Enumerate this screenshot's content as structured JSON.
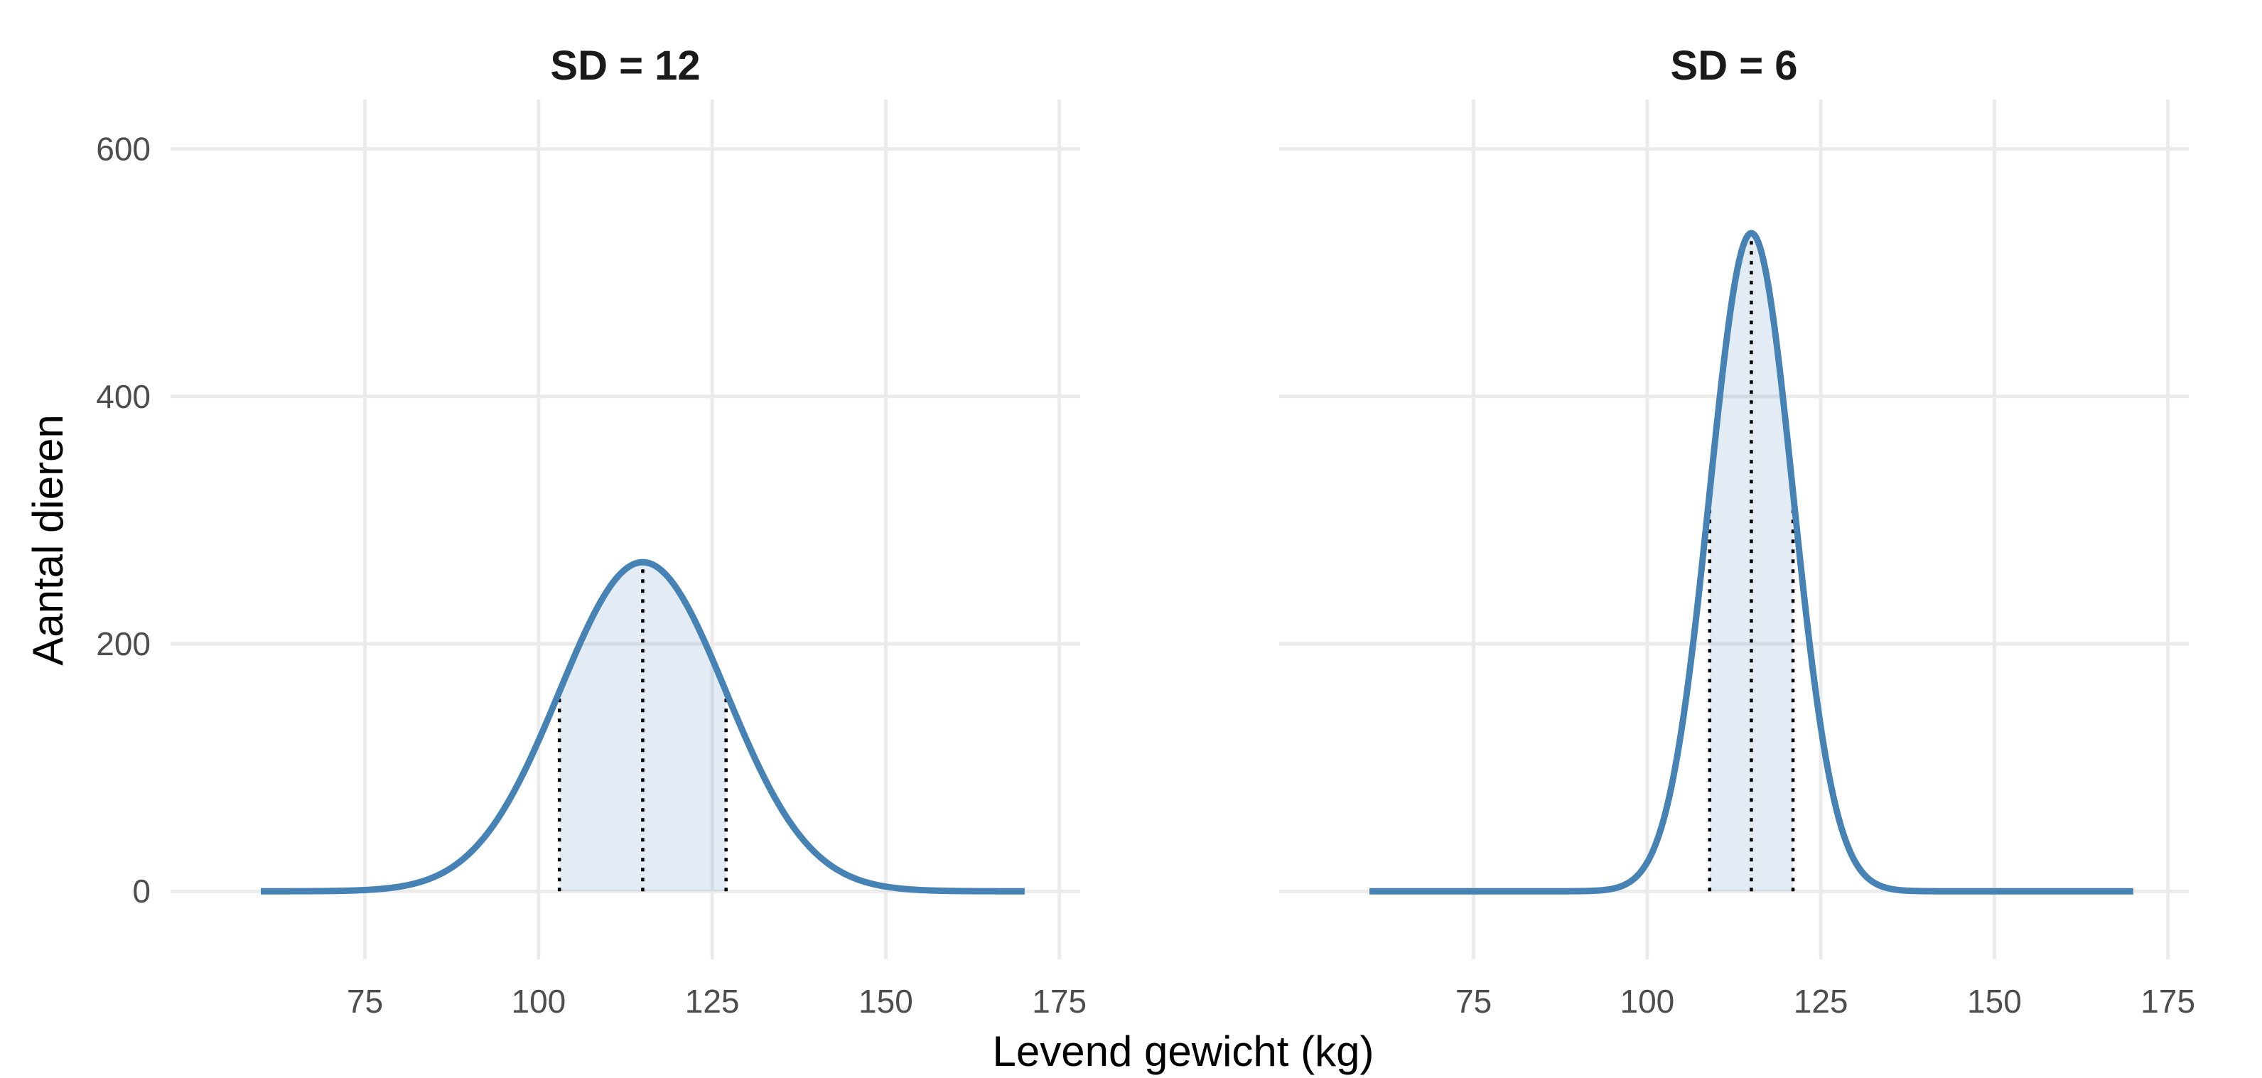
{
  "chart_data": {
    "type": "area",
    "xlabel": "Levend gewicht (kg)",
    "ylabel": "Aantal dieren",
    "xlim": [
      60,
      170
    ],
    "ylim": [
      0,
      600
    ],
    "x_ticks": [
      75,
      100,
      125,
      150,
      175
    ],
    "y_ticks": [
      0,
      200,
      400,
      600
    ],
    "grid": true,
    "colors": {
      "line": "#4682b4",
      "fill": "#4682b4",
      "grid": "#ebebeb",
      "reference_lines": "#000000"
    },
    "panels": [
      {
        "title": "SD = 12",
        "mean": 115,
        "sd": 12,
        "peak": 266,
        "x_range": [
          60,
          170
        ],
        "shaded_interval": [
          103,
          127
        ],
        "reference_lines_x": [
          103,
          115,
          127
        ]
      },
      {
        "title": "SD = 6",
        "mean": 115,
        "sd": 6,
        "peak": 532,
        "x_range": [
          60,
          170
        ],
        "shaded_interval": [
          109,
          121
        ],
        "reference_lines_x": [
          109,
          115,
          121
        ]
      }
    ]
  }
}
